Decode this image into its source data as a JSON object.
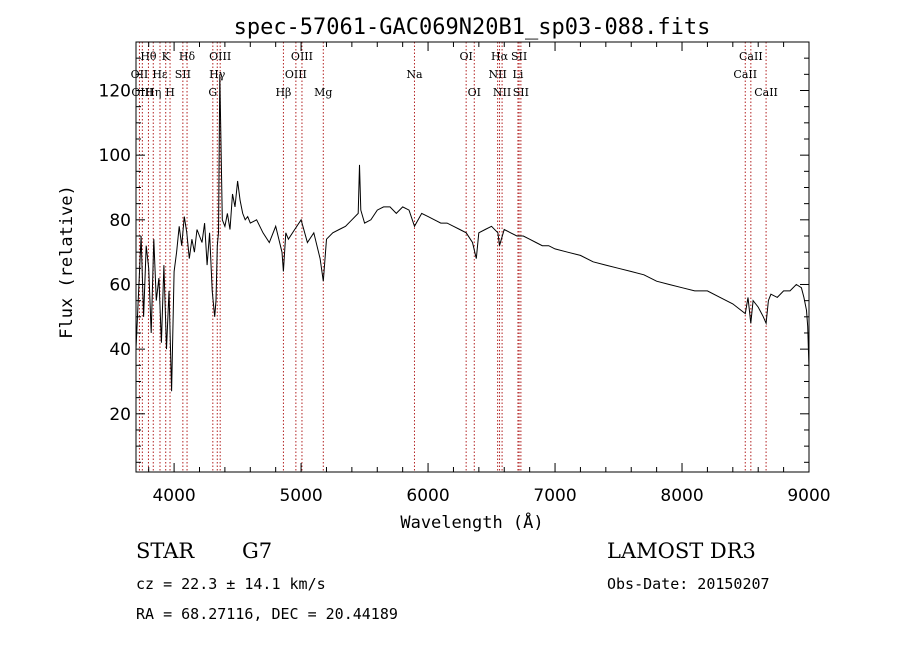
{
  "chart_data": {
    "type": "line",
    "title": "spec-57061-GAC069N20B1_sp03-088.fits",
    "xlabel": "Wavelength (Å)",
    "ylabel": "Flux (relative)",
    "xlim": [
      3700,
      9000
    ],
    "ylim": [
      2,
      135
    ],
    "xticks": [
      4000,
      5000,
      6000,
      7000,
      8000,
      9000
    ],
    "yticks": [
      20,
      40,
      60,
      80,
      100,
      120
    ],
    "spectral_lines": [
      {
        "label": "Hθ",
        "wavelength": 3798,
        "row": 0
      },
      {
        "label": "OII",
        "wavelength": 3727,
        "row": 1
      },
      {
        "label": "OIII",
        "wavelength": 3750,
        "row": 2
      },
      {
        "label": "Hε",
        "wavelength": 3889,
        "row": 1
      },
      {
        "label": "Hη",
        "wavelength": 3836,
        "row": 2
      },
      {
        "label": "K",
        "wavelength": 3934,
        "row": 0
      },
      {
        "label": "H",
        "wavelength": 3968,
        "row": 2
      },
      {
        "label": "SII",
        "wavelength": 4069,
        "row": 1
      },
      {
        "label": "Hδ",
        "wavelength": 4102,
        "row": 0
      },
      {
        "label": "OIII",
        "wavelength": 4363,
        "row": 0
      },
      {
        "label": "Hγ",
        "wavelength": 4340,
        "row": 1
      },
      {
        "label": "G",
        "wavelength": 4305,
        "row": 2
      },
      {
        "label": "Hβ",
        "wavelength": 4861,
        "row": 2
      },
      {
        "label": "OIII",
        "wavelength": 5007,
        "row": 0
      },
      {
        "label": "OIII",
        "wavelength": 4959,
        "row": 1
      },
      {
        "label": "Mg",
        "wavelength": 5175,
        "row": 2
      },
      {
        "label": "Na",
        "wavelength": 5893,
        "row": 1
      },
      {
        "label": "OI",
        "wavelength": 6300,
        "row": 0
      },
      {
        "label": "OI",
        "wavelength": 6364,
        "row": 2
      },
      {
        "label": "Hα",
        "wavelength": 6563,
        "row": 0
      },
      {
        "label": "NII",
        "wavelength": 6548,
        "row": 1
      },
      {
        "label": "NII",
        "wavelength": 6583,
        "row": 2
      },
      {
        "label": "SII",
        "wavelength": 6717,
        "row": 0
      },
      {
        "label": "Li",
        "wavelength": 6708,
        "row": 1
      },
      {
        "label": "SII",
        "wavelength": 6731,
        "row": 2
      },
      {
        "label": "CaII",
        "wavelength": 8542,
        "row": 0
      },
      {
        "label": "CaII",
        "wavelength": 8498,
        "row": 1
      },
      {
        "label": "CaII",
        "wavelength": 8662,
        "row": 2
      }
    ],
    "series": [
      {
        "name": "flux",
        "x": [
          3700,
          3720,
          3740,
          3760,
          3780,
          3800,
          3820,
          3840,
          3860,
          3880,
          3900,
          3920,
          3940,
          3960,
          3980,
          4000,
          4020,
          4040,
          4060,
          4080,
          4100,
          4120,
          4140,
          4160,
          4180,
          4200,
          4220,
          4240,
          4260,
          4280,
          4300,
          4320,
          4330,
          4340,
          4350,
          4360,
          4380,
          4400,
          4420,
          4440,
          4460,
          4480,
          4500,
          4520,
          4540,
          4560,
          4580,
          4600,
          4650,
          4700,
          4750,
          4800,
          4850,
          4861,
          4880,
          4900,
          4950,
          5000,
          5050,
          5100,
          5150,
          5175,
          5200,
          5250,
          5300,
          5350,
          5400,
          5450,
          5460,
          5470,
          5500,
          5550,
          5600,
          5650,
          5700,
          5750,
          5800,
          5850,
          5893,
          5950,
          6000,
          6050,
          6100,
          6150,
          6200,
          6250,
          6300,
          6350,
          6380,
          6400,
          6450,
          6500,
          6550,
          6563,
          6600,
          6650,
          6700,
          6750,
          6800,
          6850,
          6900,
          6950,
          7000,
          7100,
          7200,
          7300,
          7400,
          7500,
          7600,
          7700,
          7800,
          7900,
          8000,
          8100,
          8200,
          8300,
          8400,
          8498,
          8520,
          8542,
          8560,
          8600,
          8640,
          8662,
          8680,
          8700,
          8750,
          8800,
          8850,
          8900,
          8940,
          8960,
          8980,
          8990,
          9000
        ],
        "values": [
          40,
          57,
          75,
          50,
          72,
          65,
          45,
          74,
          55,
          62,
          42,
          66,
          40,
          58,
          27,
          64,
          70,
          78,
          72,
          81,
          76,
          68,
          74,
          70,
          77,
          75,
          73,
          79,
          66,
          76,
          58,
          50,
          55,
          72,
          76,
          125,
          80,
          78,
          82,
          77,
          88,
          84,
          92,
          86,
          82,
          80,
          81,
          79,
          80,
          76,
          73,
          78,
          70,
          64,
          76,
          74,
          77,
          80,
          73,
          76,
          68,
          61,
          74,
          76,
          77,
          78,
          80,
          82,
          97,
          83,
          79,
          80,
          83,
          84,
          84,
          82,
          84,
          83,
          78,
          82,
          81,
          80,
          79,
          79,
          78,
          77,
          76,
          73,
          68,
          76,
          77,
          78,
          76,
          72,
          77,
          76,
          75,
          75,
          74,
          73,
          72,
          72,
          71,
          70,
          69,
          67,
          66,
          65,
          64,
          63,
          61,
          60,
          59,
          58,
          58,
          56,
          54,
          51,
          56,
          48,
          55,
          53,
          50,
          48,
          55,
          57,
          56,
          58,
          58,
          60,
          59,
          56,
          52,
          47,
          34
        ]
      }
    ]
  },
  "info": {
    "object_class": "STAR",
    "subclass": "G7",
    "survey": "LAMOST DR3",
    "redshift": "cz = 22.3 ± 14.1 km/s",
    "obs_date": "Obs-Date: 20150207",
    "coords": "RA =  68.27116, DEC =  20.44189"
  }
}
